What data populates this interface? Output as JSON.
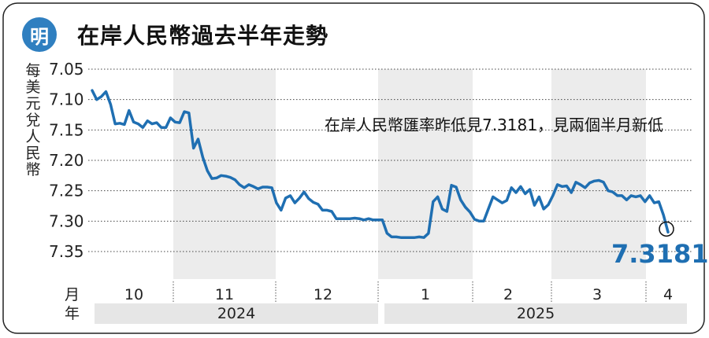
{
  "header": {
    "logo_text": "明",
    "title": "在岸人民幣過去半年走勢"
  },
  "chart_data": {
    "type": "line",
    "title": "在岸人民幣過去半年走勢",
    "ylabel": "每美元兌人民幣",
    "xlabel": "",
    "xlabel_row_month": "月",
    "xlabel_row_year": "年",
    "y_ticks": [
      "7.05",
      "7.10",
      "7.15",
      "7.20",
      "7.25",
      "7.30",
      "7.35"
    ],
    "ylim": [
      7.35,
      7.04
    ],
    "y_inverted": true,
    "grid": "horizontal dotted",
    "months": [
      "10",
      "11",
      "12",
      "1",
      "2",
      "3",
      "4"
    ],
    "years": [
      "2024",
      "2025"
    ],
    "annotation": "在岸人民幣匯率昨低見7.3181，見兩個半月新低",
    "last_value_label": "7.3181",
    "colors": {
      "line": "#1f6fb2",
      "shade": "#ececec",
      "year_bar": "#e6e6e6",
      "logo": "#2f7fc0"
    },
    "series": [
      {
        "values": [
          7.085,
          7.1,
          7.095,
          7.087,
          7.108,
          7.14,
          7.139,
          7.141,
          7.118,
          7.137,
          7.14,
          7.146,
          7.135,
          7.14,
          7.138,
          7.146,
          7.146,
          7.13,
          7.137,
          7.138,
          7.12,
          7.122,
          7.18,
          7.165,
          7.195,
          7.217,
          7.23,
          7.229,
          7.225,
          7.226,
          7.228,
          7.232,
          7.24,
          7.245,
          7.24,
          7.243,
          7.247,
          7.244,
          7.244,
          7.245,
          7.27,
          7.282,
          7.262,
          7.258,
          7.27,
          7.262,
          7.252,
          7.263,
          7.269,
          7.272,
          7.282,
          7.282,
          7.284,
          7.296,
          7.296,
          7.296,
          7.296,
          7.295,
          7.296,
          7.298,
          7.296,
          7.298,
          7.298,
          7.298,
          7.32,
          7.326,
          7.326,
          7.327,
          7.327,
          7.327,
          7.327,
          7.326,
          7.327,
          7.32,
          7.268,
          7.26,
          7.28,
          7.284,
          7.241,
          7.244,
          7.265,
          7.277,
          7.285,
          7.297,
          7.3,
          7.3,
          7.28,
          7.26,
          7.265,
          7.27,
          7.266,
          7.245,
          7.253,
          7.243,
          7.255,
          7.248,
          7.274,
          7.26,
          7.28,
          7.273,
          7.258,
          7.24,
          7.243,
          7.242,
          7.253,
          7.236,
          7.24,
          7.245,
          7.237,
          7.234,
          7.233,
          7.236,
          7.25,
          7.252,
          7.258,
          7.258,
          7.265,
          7.258,
          7.26,
          7.258,
          7.268,
          7.258,
          7.27,
          7.268,
          7.29,
          7.3181
        ]
      }
    ]
  }
}
